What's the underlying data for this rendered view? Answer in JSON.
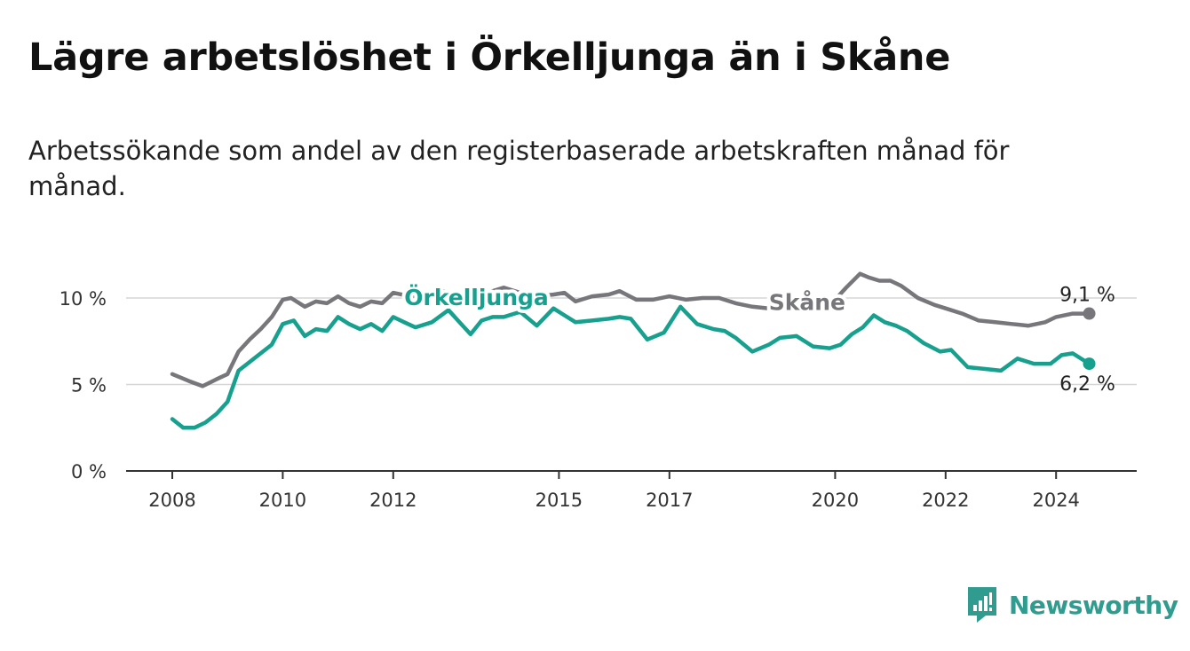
{
  "title": "Lägre arbetslöshet i Örkelljunga än i Skåne",
  "subtitle": "Arbetssökande som andel av den registerbaserade arbetskraften månad för månad.",
  "brand": {
    "name": "Newsworthy",
    "icon": "newsworthy-logo-icon",
    "color": "#2f9c8f"
  },
  "chart_data": {
    "type": "line",
    "x_unit": "year",
    "xlim": [
      2007.8,
      2025.4
    ],
    "ylim": [
      0,
      10
    ],
    "y_ticks": [
      0,
      5,
      10
    ],
    "y_tick_labels": [
      "0 %",
      "5 %",
      "10 %"
    ],
    "x_ticks": [
      2008,
      2010,
      2012,
      2015,
      2017,
      2020,
      2022,
      2024
    ],
    "x_tick_labels": [
      "2008",
      "2010",
      "2012",
      "2015",
      "2017",
      "2020",
      "2022",
      "2024"
    ],
    "grid": true,
    "series": [
      {
        "name": "Skåne",
        "label": "Skåne",
        "color": "#77767b",
        "end_label": "9,1 %",
        "x": [
          2008.0,
          2008.3,
          2008.55,
          2008.8,
          2009.0,
          2009.2,
          2009.4,
          2009.6,
          2009.8,
          2010.0,
          2010.15,
          2010.4,
          2010.6,
          2010.8,
          2011.0,
          2011.2,
          2011.4,
          2011.6,
          2011.8,
          2012.0,
          2012.3,
          2012.6,
          2012.9,
          2013.1,
          2013.4,
          2013.7,
          2014.0,
          2014.3,
          2014.6,
          2014.9,
          2015.1,
          2015.3,
          2015.6,
          2015.9,
          2016.1,
          2016.4,
          2016.7,
          2017.0,
          2017.3,
          2017.6,
          2017.9,
          2018.2,
          2018.5,
          2018.8,
          2019.1,
          2019.4,
          2019.7,
          2020.0,
          2020.2,
          2020.45,
          2020.6,
          2020.8,
          2021.0,
          2021.2,
          2021.5,
          2021.8,
          2022.0,
          2022.3,
          2022.6,
          2022.9,
          2023.2,
          2023.5,
          2023.8,
          2024.0,
          2024.3,
          2024.6
        ],
        "values": [
          5.6,
          5.2,
          4.9,
          5.3,
          5.6,
          6.9,
          7.6,
          8.2,
          8.9,
          9.9,
          10.0,
          9.5,
          9.8,
          9.7,
          10.1,
          9.7,
          9.5,
          9.8,
          9.7,
          10.3,
          10.1,
          10.2,
          10.4,
          10.2,
          10.2,
          10.3,
          10.6,
          10.3,
          10.1,
          10.2,
          10.3,
          9.8,
          10.1,
          10.2,
          10.4,
          9.9,
          9.9,
          10.1,
          9.9,
          10.0,
          10.0,
          9.7,
          9.5,
          9.4,
          9.6,
          9.7,
          9.8,
          9.9,
          10.6,
          11.4,
          11.2,
          11.0,
          11.0,
          10.7,
          10.0,
          9.6,
          9.4,
          9.1,
          8.7,
          8.6,
          8.5,
          8.4,
          8.6,
          8.9,
          9.1,
          9.1
        ]
      },
      {
        "name": "Örkelljunga",
        "label": "Örkelljunga",
        "color": "#18a08f",
        "end_label": "6,2 %",
        "x": [
          2008.0,
          2008.2,
          2008.4,
          2008.6,
          2008.8,
          2009.0,
          2009.2,
          2009.4,
          2009.6,
          2009.8,
          2010.0,
          2010.2,
          2010.4,
          2010.6,
          2010.8,
          2011.0,
          2011.2,
          2011.4,
          2011.6,
          2011.8,
          2012.0,
          2012.2,
          2012.4,
          2012.7,
          2013.0,
          2013.2,
          2013.4,
          2013.6,
          2013.8,
          2014.0,
          2014.3,
          2014.6,
          2014.9,
          2015.1,
          2015.3,
          2015.6,
          2015.9,
          2016.1,
          2016.3,
          2016.6,
          2016.9,
          2017.0,
          2017.2,
          2017.5,
          2017.8,
          2018.0,
          2018.2,
          2018.5,
          2018.8,
          2019.0,
          2019.3,
          2019.6,
          2019.9,
          2020.1,
          2020.3,
          2020.5,
          2020.7,
          2020.9,
          2021.1,
          2021.3,
          2021.6,
          2021.9,
          2022.1,
          2022.4,
          2022.7,
          2023.0,
          2023.3,
          2023.6,
          2023.9,
          2024.1,
          2024.3,
          2024.6
        ],
        "values": [
          3.0,
          2.5,
          2.5,
          2.8,
          3.3,
          4.0,
          5.8,
          6.3,
          6.8,
          7.3,
          8.5,
          8.7,
          7.8,
          8.2,
          8.1,
          8.9,
          8.5,
          8.2,
          8.5,
          8.1,
          8.9,
          8.6,
          8.3,
          8.6,
          9.3,
          8.6,
          7.9,
          8.7,
          8.9,
          8.9,
          9.2,
          8.4,
          9.4,
          9.0,
          8.6,
          8.7,
          8.8,
          8.9,
          8.8,
          7.6,
          8.0,
          8.5,
          9.5,
          8.5,
          8.2,
          8.1,
          7.7,
          6.9,
          7.3,
          7.7,
          7.8,
          7.2,
          7.1,
          7.3,
          7.9,
          8.3,
          9.0,
          8.6,
          8.4,
          8.1,
          7.4,
          6.9,
          7.0,
          6.0,
          5.9,
          5.8,
          6.5,
          6.2,
          6.2,
          6.7,
          6.8,
          6.2
        ]
      }
    ]
  }
}
